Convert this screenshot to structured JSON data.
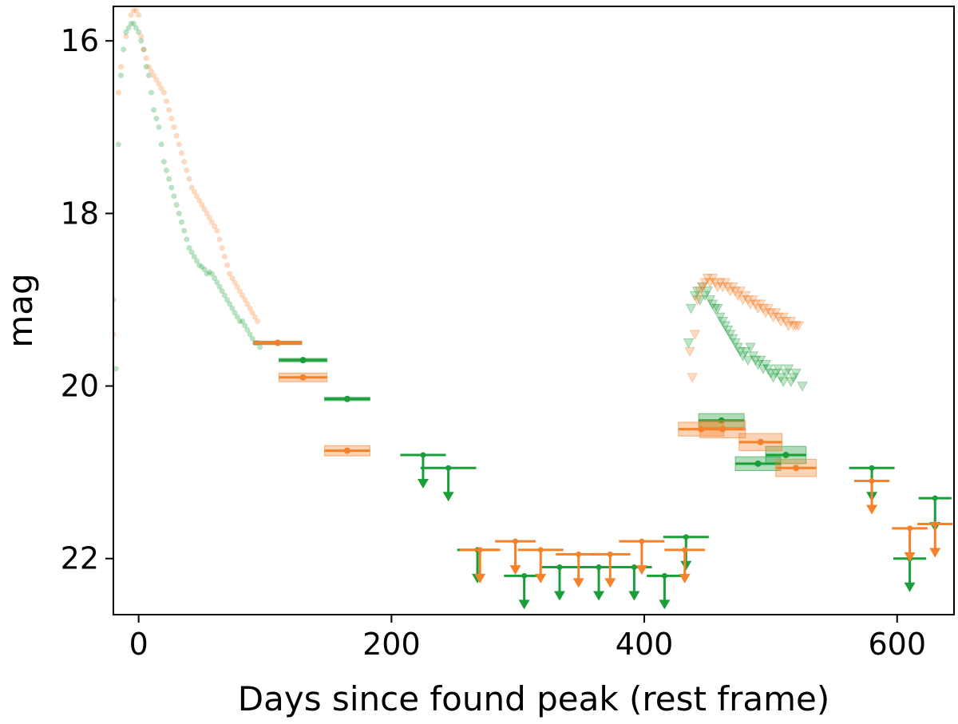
{
  "chart_data": {
    "type": "scatter",
    "title": "",
    "xlabel": "Days since found peak (rest frame)",
    "ylabel": "mag",
    "xlim": [
      -20,
      645
    ],
    "ylim": [
      22.65,
      15.6
    ],
    "y_inverted": true,
    "x_ticks": [
      0,
      200,
      400,
      600
    ],
    "y_ticks": [
      16,
      18,
      20,
      22
    ],
    "grid": false,
    "colors": {
      "green": "#1a9e3a",
      "orange": "#f5822a"
    },
    "series": [
      {
        "color": "green",
        "kind": "early_points",
        "points": [
          [
            -20,
            19.0
          ],
          [
            -18,
            19.8
          ],
          [
            -16,
            17.2
          ],
          [
            -14,
            16.4
          ],
          [
            -12,
            16.1
          ],
          [
            -10,
            15.9
          ],
          [
            -8,
            15.85
          ],
          [
            -6,
            15.8
          ],
          [
            -4,
            15.8
          ],
          [
            -2,
            15.85
          ],
          [
            0,
            15.9
          ],
          [
            2,
            16.0
          ],
          [
            4,
            16.1
          ],
          [
            6,
            16.3
          ],
          [
            8,
            16.4
          ],
          [
            10,
            16.6
          ],
          [
            12,
            16.8
          ],
          [
            14,
            16.9
          ],
          [
            16,
            17.0
          ],
          [
            18,
            17.2
          ],
          [
            20,
            17.4
          ],
          [
            22,
            17.5
          ],
          [
            24,
            17.6
          ],
          [
            26,
            17.7
          ],
          [
            28,
            17.8
          ],
          [
            30,
            17.9
          ],
          [
            32,
            18.0
          ],
          [
            34,
            18.1
          ],
          [
            36,
            18.2
          ],
          [
            38,
            18.3
          ],
          [
            40,
            18.4
          ],
          [
            42,
            18.45
          ],
          [
            44,
            18.5
          ],
          [
            46,
            18.55
          ],
          [
            48,
            18.6
          ],
          [
            50,
            18.62
          ],
          [
            52,
            18.65
          ],
          [
            54,
            18.7
          ],
          [
            56,
            18.68
          ],
          [
            58,
            18.7
          ],
          [
            60,
            18.75
          ],
          [
            62,
            18.8
          ],
          [
            64,
            18.85
          ],
          [
            66,
            18.9
          ],
          [
            68,
            18.95
          ],
          [
            70,
            19.0
          ],
          [
            72,
            19.05
          ],
          [
            74,
            19.1
          ],
          [
            76,
            19.15
          ],
          [
            78,
            19.2
          ],
          [
            80,
            19.25
          ],
          [
            82,
            19.25
          ],
          [
            84,
            19.3
          ],
          [
            86,
            19.35
          ],
          [
            88,
            19.4
          ],
          [
            90,
            19.45
          ],
          [
            92,
            19.5
          ],
          [
            94,
            19.5
          ],
          [
            96,
            19.55
          ]
        ]
      },
      {
        "color": "orange",
        "kind": "early_points",
        "points": [
          [
            -20,
            19.4
          ],
          [
            -16,
            16.6
          ],
          [
            -14,
            16.3
          ],
          [
            -10,
            15.95
          ],
          [
            -6,
            15.7
          ],
          [
            -4,
            15.65
          ],
          [
            -2,
            15.65
          ],
          [
            0,
            15.7
          ],
          [
            2,
            15.95
          ],
          [
            4,
            16.1
          ],
          [
            6,
            16.2
          ],
          [
            8,
            16.3
          ],
          [
            10,
            16.35
          ],
          [
            12,
            16.4
          ],
          [
            14,
            16.45
          ],
          [
            16,
            16.5
          ],
          [
            18,
            16.55
          ],
          [
            20,
            16.6
          ],
          [
            22,
            16.7
          ],
          [
            24,
            16.8
          ],
          [
            26,
            16.9
          ],
          [
            28,
            17.0
          ],
          [
            30,
            17.1
          ],
          [
            32,
            17.2
          ],
          [
            34,
            17.3
          ],
          [
            36,
            17.4
          ],
          [
            38,
            17.5
          ],
          [
            40,
            17.6
          ],
          [
            42,
            17.7
          ],
          [
            44,
            17.75
          ],
          [
            46,
            17.8
          ],
          [
            48,
            17.85
          ],
          [
            50,
            17.9
          ],
          [
            52,
            17.95
          ],
          [
            54,
            18.0
          ],
          [
            56,
            18.05
          ],
          [
            58,
            18.1
          ],
          [
            60,
            18.15
          ],
          [
            62,
            18.2
          ],
          [
            64,
            18.3
          ],
          [
            66,
            18.4
          ],
          [
            68,
            18.5
          ],
          [
            70,
            18.6
          ],
          [
            72,
            18.7
          ],
          [
            74,
            18.75
          ],
          [
            76,
            18.8
          ],
          [
            78,
            18.85
          ],
          [
            80,
            18.9
          ],
          [
            82,
            18.95
          ],
          [
            84,
            19.0
          ],
          [
            86,
            19.05
          ],
          [
            88,
            19.1
          ],
          [
            90,
            19.15
          ],
          [
            92,
            19.2
          ],
          [
            94,
            19.25
          ]
        ]
      },
      {
        "color": "green",
        "kind": "binned",
        "points": [
          [
            110,
            19.5,
            0.02,
            19
          ],
          [
            130,
            19.7,
            0.02,
            19
          ],
          [
            165,
            20.15,
            0.02,
            18
          ],
          [
            461,
            20.4,
            0.08,
            18
          ],
          [
            490,
            20.9,
            0.08,
            18
          ],
          [
            512,
            20.8,
            0.1,
            16
          ]
        ]
      },
      {
        "color": "orange",
        "kind": "binned",
        "points": [
          [
            110,
            19.5,
            0.02,
            19
          ],
          [
            130,
            19.9,
            0.05,
            19
          ],
          [
            165,
            20.75,
            0.06,
            18
          ],
          [
            445,
            20.5,
            0.08,
            18
          ],
          [
            462,
            20.5,
            0.1,
            18
          ],
          [
            492,
            20.65,
            0.1,
            17
          ],
          [
            520,
            20.95,
            0.1,
            16
          ]
        ]
      },
      {
        "color": "green",
        "kind": "upper_limits",
        "points": [
          [
            225,
            20.8,
            18
          ],
          [
            245,
            20.95,
            22
          ],
          [
            268,
            21.9,
            16
          ],
          [
            305,
            22.2,
            16
          ],
          [
            333,
            22.1,
            14
          ],
          [
            364,
            22.1,
            18
          ],
          [
            392,
            22.1,
            14
          ],
          [
            416,
            22.2,
            14
          ],
          [
            433,
            21.75,
            18
          ],
          [
            580,
            20.95,
            18
          ],
          [
            610,
            22.0,
            13
          ],
          [
            630,
            21.3,
            13
          ]
        ]
      },
      {
        "color": "orange",
        "kind": "upper_limits",
        "points": [
          [
            270,
            21.9,
            16
          ],
          [
            298,
            21.8,
            16
          ],
          [
            318,
            21.9,
            18
          ],
          [
            348,
            21.95,
            18
          ],
          [
            373,
            21.95,
            16
          ],
          [
            398,
            21.8,
            18
          ],
          [
            432,
            21.9,
            16
          ],
          [
            580,
            21.1,
            14
          ],
          [
            610,
            21.65,
            14
          ],
          [
            630,
            21.6,
            14
          ]
        ]
      },
      {
        "color": "green",
        "kind": "late_points",
        "points": [
          [
            437,
            19.1
          ],
          [
            440,
            18.95
          ],
          [
            442,
            18.9
          ],
          [
            444,
            19.0
          ],
          [
            446,
            18.85
          ],
          [
            448,
            18.95
          ],
          [
            450,
            18.9
          ],
          [
            452,
            19.0
          ],
          [
            454,
            19.05
          ],
          [
            456,
            19.1
          ],
          [
            458,
            19.1
          ],
          [
            460,
            19.2
          ],
          [
            462,
            19.25
          ],
          [
            464,
            19.3
          ],
          [
            466,
            19.35
          ],
          [
            468,
            19.4
          ],
          [
            470,
            19.45
          ],
          [
            472,
            19.5
          ],
          [
            474,
            19.55
          ],
          [
            476,
            19.6
          ],
          [
            478,
            19.65
          ],
          [
            480,
            19.6
          ],
          [
            482,
            19.7
          ],
          [
            484,
            19.55
          ],
          [
            486,
            19.65
          ],
          [
            488,
            19.7
          ],
          [
            490,
            19.75
          ],
          [
            492,
            19.7
          ],
          [
            494,
            19.8
          ],
          [
            496,
            19.75
          ],
          [
            498,
            19.8
          ],
          [
            500,
            19.85
          ],
          [
            502,
            19.9
          ],
          [
            504,
            19.85
          ],
          [
            506,
            19.8
          ],
          [
            508,
            19.9
          ],
          [
            510,
            19.95
          ],
          [
            512,
            19.85
          ],
          [
            514,
            19.8
          ],
          [
            516,
            19.95
          ],
          [
            518,
            19.9
          ],
          [
            520,
            19.85
          ],
          [
            525,
            20.0
          ],
          [
            435,
            19.5
          ]
        ]
      },
      {
        "color": "orange",
        "kind": "late_points",
        "points": [
          [
            436,
            19.6
          ],
          [
            438,
            19.9
          ],
          [
            440,
            19.4
          ],
          [
            442,
            19.0
          ],
          [
            444,
            18.9
          ],
          [
            446,
            18.85
          ],
          [
            448,
            18.8
          ],
          [
            450,
            18.75
          ],
          [
            452,
            18.8
          ],
          [
            454,
            18.75
          ],
          [
            456,
            18.8
          ],
          [
            458,
            18.85
          ],
          [
            460,
            18.8
          ],
          [
            462,
            18.85
          ],
          [
            464,
            18.8
          ],
          [
            466,
            18.85
          ],
          [
            468,
            18.9
          ],
          [
            470,
            18.85
          ],
          [
            472,
            18.9
          ],
          [
            474,
            18.95
          ],
          [
            476,
            18.9
          ],
          [
            478,
            19.0
          ],
          [
            480,
            18.95
          ],
          [
            482,
            19.0
          ],
          [
            484,
            19.05
          ],
          [
            486,
            19.0
          ],
          [
            488,
            19.05
          ],
          [
            490,
            19.1
          ],
          [
            492,
            19.05
          ],
          [
            494,
            19.1
          ],
          [
            496,
            19.15
          ],
          [
            498,
            19.1
          ],
          [
            500,
            19.15
          ],
          [
            502,
            19.2
          ],
          [
            504,
            19.15
          ],
          [
            506,
            19.2
          ],
          [
            508,
            19.25
          ],
          [
            510,
            19.2
          ],
          [
            512,
            19.25
          ],
          [
            514,
            19.3
          ],
          [
            516,
            19.25
          ],
          [
            518,
            19.3
          ],
          [
            520,
            19.3
          ],
          [
            522,
            19.3
          ]
        ]
      }
    ]
  }
}
